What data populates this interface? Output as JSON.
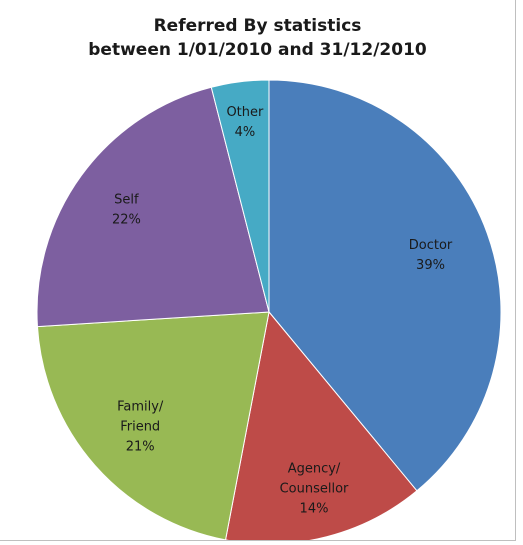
{
  "chart_data": {
    "type": "pie",
    "title": "Referred By statistics",
    "subtitle": "between 1/01/2010 and 31/12/2010",
    "start_angle_deg": 0,
    "direction": "clockwise",
    "legend": "none",
    "slices": [
      {
        "label": [
          "Doctor"
        ],
        "pct_text": "39%",
        "value": 39,
        "color": "#4a7ebb"
      },
      {
        "label": [
          "Agency/",
          "Counsellor"
        ],
        "pct_text": "14%",
        "value": 14,
        "color": "#be4b48"
      },
      {
        "label": [
          "Family/",
          "Friend"
        ],
        "pct_text": "21%",
        "value": 21,
        "color": "#98b954"
      },
      {
        "label": [
          "Self"
        ],
        "pct_text": "22%",
        "value": 22,
        "color": "#7d5fa0"
      },
      {
        "label": [
          "Other"
        ],
        "pct_text": "4%",
        "value": 4,
        "color": "#46aac5"
      }
    ]
  }
}
